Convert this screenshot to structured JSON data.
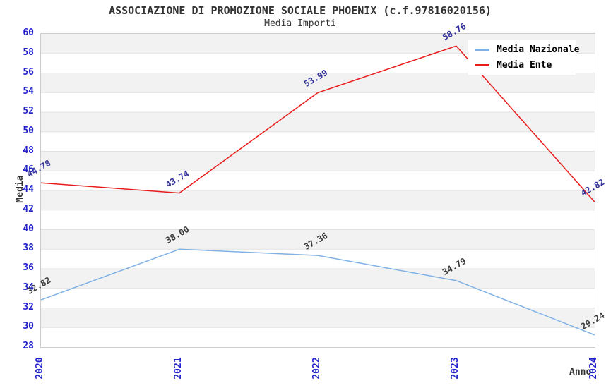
{
  "title": "ASSOCIAZIONE DI PROMOZIONE SOCIALE PHOENIX (c.f.97816020156)",
  "subtitle": "Media Importi",
  "colors": {
    "axis_tick_blue": "#2222cc",
    "band_gray": "#f2f2f2",
    "band_white": "#ffffff",
    "gridline": "#e2e2e2",
    "plot_border": "#cccccc",
    "text_dark": "#333333"
  },
  "legend": {
    "position": "top-right",
    "entries": [
      "Media Nazionale",
      "Media Ente"
    ]
  },
  "chart_data": {
    "type": "line",
    "title": "ASSOCIAZIONE DI PROMOZIONE SOCIALE PHOENIX (c.f.97816020156)",
    "subtitle": "Media Importi",
    "categories": [
      "2020",
      "2021",
      "2022",
      "2023",
      "2024"
    ],
    "series": [
      {
        "name": "Media Nazionale",
        "color": "#7fb1e5",
        "label_color": "#3c3c3c",
        "values": [
          32.82,
          38.0,
          37.36,
          34.79,
          29.24
        ]
      },
      {
        "name": "Media Ente",
        "color": "#e81c1c",
        "label_color": "#333399",
        "values": [
          44.78,
          43.74,
          53.99,
          58.76,
          42.82
        ]
      }
    ],
    "xlabel": "Anno",
    "ylabel": "Media",
    "ylim": [
      28,
      60
    ],
    "ytick_step": 2,
    "grid": "horizontal-bands",
    "legend_position": "top-right"
  }
}
